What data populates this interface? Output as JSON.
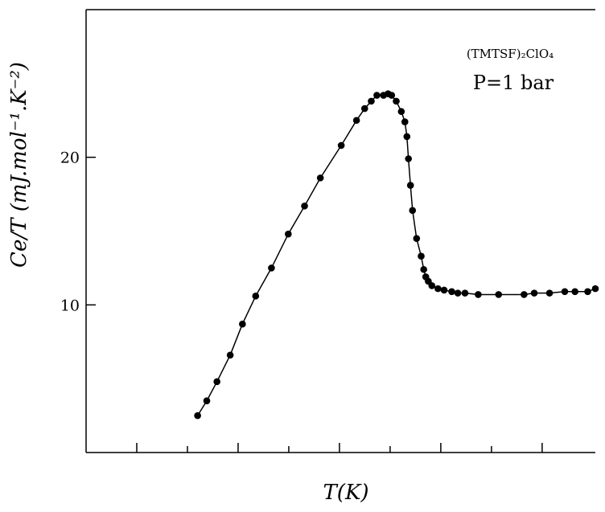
{
  "chart_data": {
    "type": "scatter",
    "title": "",
    "xlabel": "T(K)",
    "ylabel": "Ce/T (mJ.mol⁻¹.K⁻²)",
    "xlim": [
      0,
      1
    ],
    "ylim": [
      0,
      30
    ],
    "x_ticks_count": 9,
    "y_ticks": [
      10,
      20
    ],
    "grid": false,
    "annotations": [
      {
        "text": "(TMTSF)₂ClO₄"
      },
      {
        "text": "P=1 bar"
      }
    ],
    "series": [
      {
        "x": [
          0.219,
          0.237,
          0.257,
          0.283,
          0.307,
          0.333,
          0.364,
          0.397,
          0.429,
          0.46,
          0.501,
          0.531,
          0.547,
          0.56,
          0.571,
          0.584,
          0.593,
          0.6,
          0.609,
          0.619,
          0.626,
          0.63,
          0.633,
          0.637,
          0.641,
          0.649,
          0.658,
          0.663,
          0.667,
          0.672,
          0.679,
          0.691,
          0.703,
          0.718,
          0.73,
          0.744,
          0.77,
          0.81,
          0.86,
          0.88,
          0.91,
          0.94,
          0.96,
          0.985,
          1.0
        ],
        "y": [
          2.5,
          3.5,
          4.8,
          6.6,
          8.7,
          10.6,
          12.5,
          14.8,
          16.7,
          18.6,
          20.8,
          22.5,
          23.3,
          23.8,
          24.2,
          24.2,
          24.3,
          24.2,
          23.8,
          23.1,
          22.4,
          21.4,
          19.9,
          18.1,
          16.4,
          14.5,
          13.3,
          12.4,
          11.9,
          11.6,
          11.3,
          11.1,
          11.0,
          10.9,
          10.8,
          10.8,
          10.7,
          10.7,
          10.7,
          10.8,
          10.8,
          10.9,
          10.9,
          10.9,
          11.1
        ]
      }
    ]
  }
}
